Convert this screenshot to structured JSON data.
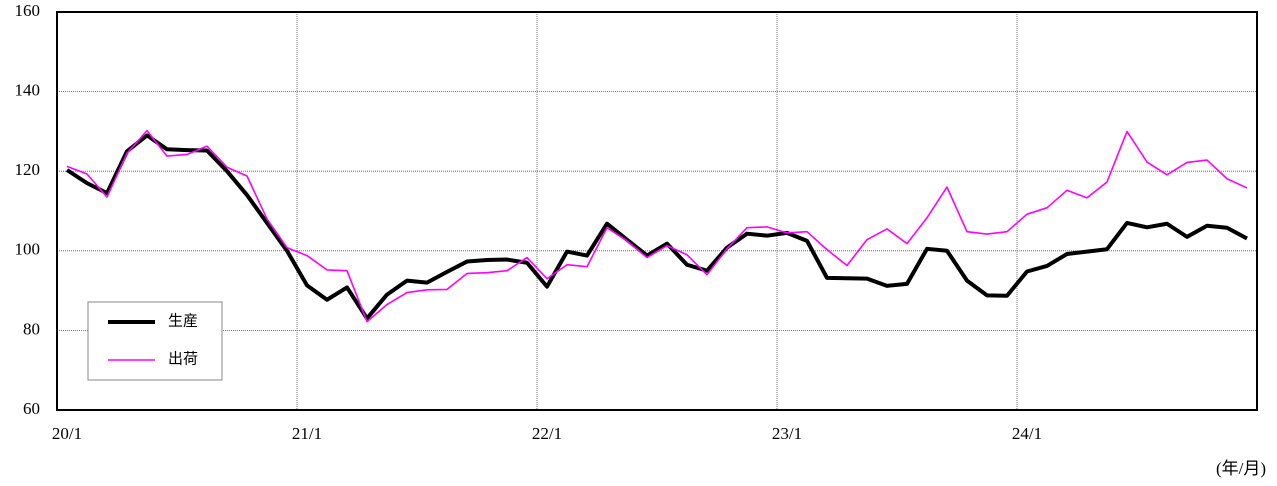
{
  "chart_data": {
    "type": "line",
    "xlabel": "(年/月)",
    "categories": [
      "20/1",
      null,
      null,
      null,
      null,
      null,
      null,
      null,
      null,
      null,
      null,
      null,
      "21/1",
      null,
      null,
      null,
      null,
      null,
      null,
      null,
      null,
      null,
      null,
      null,
      "22/1",
      null,
      null,
      null,
      null,
      null,
      null,
      null,
      null,
      null,
      null,
      null,
      "23/1",
      null,
      null,
      null,
      null,
      null,
      null,
      null,
      null,
      null,
      null,
      null,
      "24/1",
      null,
      null,
      null,
      null,
      null,
      null,
      null,
      null,
      null,
      null,
      null
    ],
    "series": [
      {
        "name": "生産",
        "color": "#000000",
        "values": [
          120.3,
          117,
          114.5,
          125,
          129,
          125.5,
          125.3,
          125.2,
          120,
          114,
          107,
          100,
          91.3,
          87.7,
          90.8,
          83,
          89,
          92.5,
          92,
          94.7,
          97.3,
          97.7,
          97.8,
          97,
          91,
          99.8,
          98.8,
          106.8,
          102.8,
          98.8,
          101.8,
          96.5,
          95,
          100.8,
          104.3,
          103.8,
          104.5,
          102.5,
          93.2,
          93.1,
          93,
          91.2,
          91.7,
          100.5,
          100,
          92.5,
          88.8,
          88.7,
          94.8,
          96.2,
          99.2,
          99.8,
          100.4,
          107,
          105.9,
          106.8,
          103.5,
          106.3,
          105.8,
          103.1
        ]
      },
      {
        "name": "出荷",
        "color": "#ff00ff",
        "values": [
          121.2,
          119.3,
          113.5,
          124.5,
          130.2,
          123.8,
          124.2,
          126.3,
          121,
          118.8,
          108,
          100.8,
          98.8,
          95.2,
          95,
          82.2,
          86.5,
          89.5,
          90.2,
          90.3,
          94.3,
          94.5,
          95,
          98.3,
          93,
          96.5,
          96,
          105.8,
          102.5,
          98.3,
          101.3,
          99,
          94,
          100.5,
          105.8,
          106,
          104.5,
          104.8,
          100.3,
          96.3,
          102.8,
          105.5,
          101.8,
          108.3,
          116,
          104.8,
          104.2,
          104.8,
          109.2,
          110.8,
          115.2,
          113.3,
          117.3,
          130,
          122.3,
          119.1,
          122.2,
          122.8,
          118.1,
          115.8
        ]
      }
    ],
    "ylim": [
      60,
      160
    ],
    "yticks": [
      60,
      80,
      100,
      120,
      140,
      160
    ],
    "grid": true,
    "legend": "lower left"
  }
}
